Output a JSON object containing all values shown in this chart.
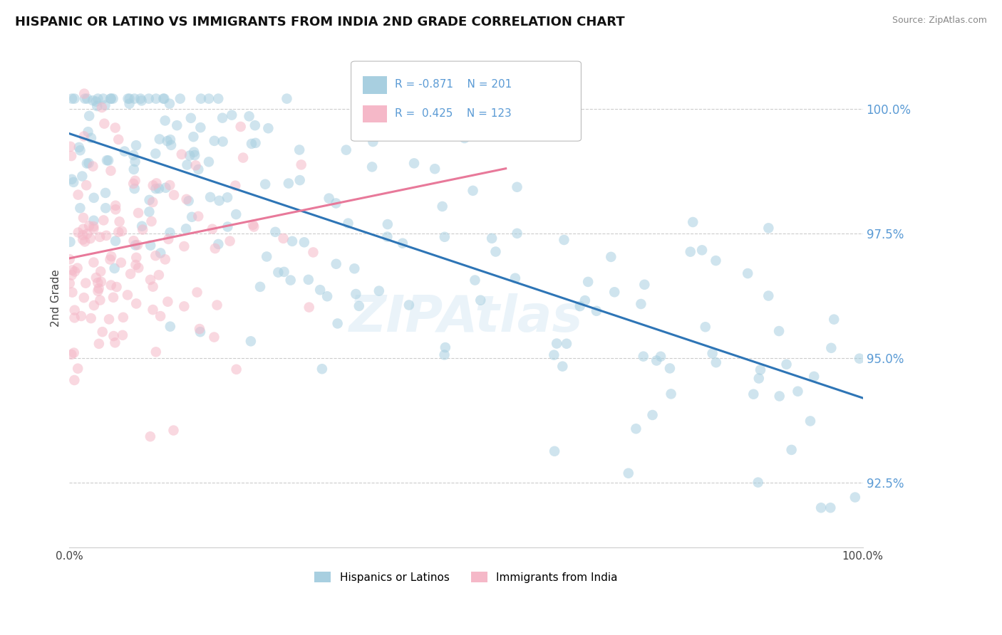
{
  "title": "HISPANIC OR LATINO VS IMMIGRANTS FROM INDIA 2ND GRADE CORRELATION CHART",
  "source": "Source: ZipAtlas.com",
  "xmin": 0.0,
  "xmax": 100.0,
  "ymin": 91.2,
  "ymax": 101.2,
  "ylabel_ticks": [
    92.5,
    95.0,
    97.5,
    100.0
  ],
  "blue_R": -0.871,
  "blue_N": 201,
  "pink_R": 0.425,
  "pink_N": 123,
  "blue_color": "#a8cfe0",
  "pink_color": "#f5b8c8",
  "blue_line_color": "#2e75b6",
  "pink_line_color": "#e8799a",
  "legend_blue_label": "Hispanics or Latinos",
  "legend_pink_label": "Immigrants from India",
  "watermark": "ZIPAtlas",
  "background_color": "#ffffff",
  "title_fontsize": 13,
  "axis_tick_color": "#5b9bd5",
  "grid_color": "#cccccc",
  "blue_line_y0": 99.5,
  "blue_line_y1": 94.2,
  "pink_line_y0": 97.0,
  "pink_line_y1": 98.8,
  "pink_line_x1": 55.0
}
